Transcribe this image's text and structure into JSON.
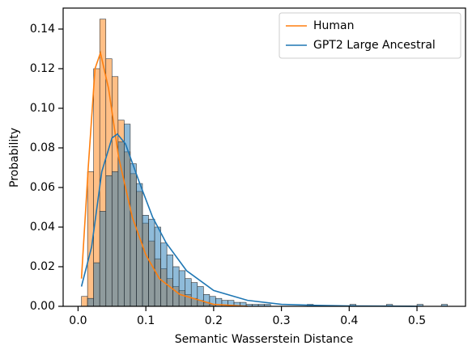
{
  "chart_data": {
    "type": "histogram",
    "xlabel": "Semantic Wasserstein Distance",
    "ylabel": "Probability",
    "bins": [
      0.005,
      0.014,
      0.023,
      0.032,
      0.041,
      0.05,
      0.059,
      0.068,
      0.077,
      0.086,
      0.095,
      0.104,
      0.113,
      0.122,
      0.131,
      0.14,
      0.149,
      0.158,
      0.167,
      0.176,
      0.185,
      0.194,
      0.203,
      0.212,
      0.221,
      0.23,
      0.239,
      0.248,
      0.257,
      0.266,
      0.275,
      0.284,
      0.293,
      0.302,
      0.311,
      0.32,
      0.329,
      0.338,
      0.347,
      0.356,
      0.365,
      0.374,
      0.383,
      0.392,
      0.401,
      0.41,
      0.419,
      0.428,
      0.437,
      0.446,
      0.455,
      0.464,
      0.473,
      0.482,
      0.491,
      0.5,
      0.509,
      0.518,
      0.527,
      0.536,
      0.545
    ],
    "series": [
      {
        "name": "Human",
        "color": "#ff7f0e",
        "values": [
          0.005,
          0.068,
          0.12,
          0.145,
          0.125,
          0.116,
          0.094,
          0.078,
          0.067,
          0.058,
          0.042,
          0.033,
          0.024,
          0.019,
          0.014,
          0.01,
          0.008,
          0.006,
          0.004,
          0.003,
          0.002,
          0.001,
          0,
          0,
          0,
          0,
          0,
          0,
          0,
          0,
          0,
          0,
          0,
          0,
          0,
          0,
          0,
          0,
          0,
          0,
          0,
          0,
          0,
          0,
          0,
          0,
          0,
          0,
          0,
          0,
          0,
          0,
          0,
          0,
          0,
          0,
          0,
          0,
          0,
          0
        ],
        "kde_x": [
          0.005,
          0.015,
          0.025,
          0.033,
          0.045,
          0.06,
          0.08,
          0.1,
          0.12,
          0.15,
          0.2,
          0.25
        ],
        "kde_values": [
          0.014,
          0.07,
          0.12,
          0.128,
          0.11,
          0.075,
          0.045,
          0.026,
          0.014,
          0.006,
          0.001,
          0.0
        ]
      },
      {
        "name": "GPT2 Large Ancestral",
        "color": "#1f77b4",
        "values": [
          0,
          0.004,
          0.022,
          0.048,
          0.066,
          0.068,
          0.083,
          0.092,
          0.072,
          0.062,
          0.046,
          0.044,
          0.04,
          0.032,
          0.026,
          0.02,
          0.018,
          0.014,
          0.012,
          0.01,
          0.006,
          0.005,
          0.004,
          0.003,
          0.003,
          0.002,
          0.002,
          0.001,
          0.001,
          0.001,
          0.001,
          0,
          0,
          0,
          0,
          0,
          0,
          0.001,
          0,
          0,
          0,
          0,
          0,
          0,
          0.001,
          0,
          0,
          0,
          0,
          0,
          0.001,
          0,
          0,
          0,
          0,
          0.001,
          0,
          0,
          0,
          0.001
        ],
        "kde_x": [
          0.005,
          0.02,
          0.035,
          0.05,
          0.058,
          0.07,
          0.09,
          0.11,
          0.13,
          0.16,
          0.2,
          0.25,
          0.3,
          0.35,
          0.4,
          0.5
        ],
        "kde_values": [
          0.01,
          0.03,
          0.068,
          0.085,
          0.087,
          0.082,
          0.063,
          0.045,
          0.032,
          0.018,
          0.008,
          0.003,
          0.001,
          0.0005,
          0.0002,
          0.0
        ]
      }
    ],
    "xlim": [
      -0.022,
      0.5716
    ],
    "ylim": [
      0,
      0.1506
    ],
    "xticks": [
      {
        "value": 0,
        "label": "0.0"
      },
      0.1,
      0.2,
      0.3,
      0.4,
      0.5
    ],
    "yticks": [
      {
        "value": 0,
        "label": "0.00"
      },
      {
        "value": 0.02,
        "label": "0.02"
      },
      {
        "value": 0.04,
        "label": "0.04"
      },
      {
        "value": 0.06,
        "label": "0.06"
      },
      {
        "value": 0.08,
        "label": "0.08"
      },
      {
        "value": 0.1,
        "label": "0.10"
      },
      {
        "value": 0.12,
        "label": "0.12"
      },
      {
        "value": 0.14,
        "label": "0.14"
      }
    ],
    "legend": "upper right"
  }
}
